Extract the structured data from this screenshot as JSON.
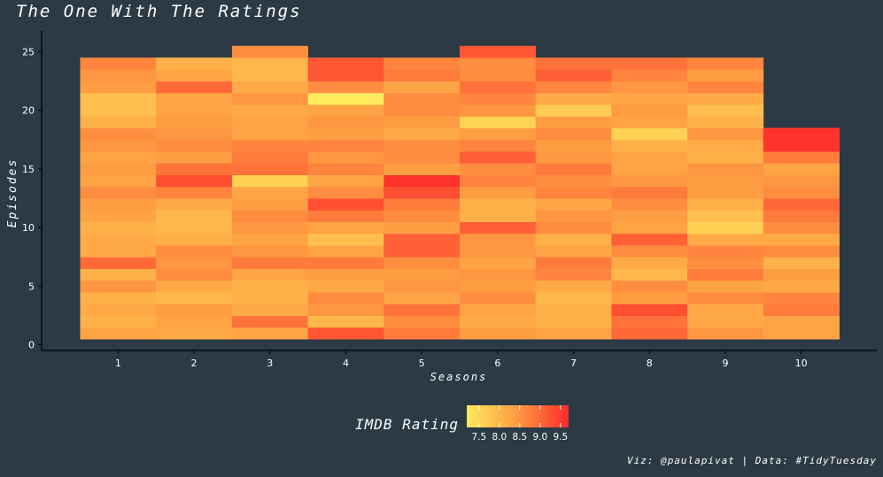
{
  "title": "The One With The Ratings",
  "caption": "Viz: @paulapivat | Data: #TidyTuesday",
  "chart_data": {
    "type": "heatmap",
    "title": "The One With The Ratings",
    "xlabel": "Seasons",
    "ylabel": "Episodes",
    "x_ticks": [
      "1",
      "2",
      "3",
      "4",
      "5",
      "6",
      "7",
      "8",
      "9",
      "10"
    ],
    "y_ticks": [
      0,
      5,
      10,
      15,
      20,
      25
    ],
    "xlim": [
      0.5,
      10.5
    ],
    "ylim": [
      0,
      26.5
    ],
    "legend": {
      "title": "IMDB Rating",
      "position": "bottom",
      "ticks": [
        7.5,
        8.0,
        8.5,
        9.0,
        9.5
      ],
      "range": [
        7.2,
        9.7
      ],
      "colors": [
        "#ffeb5c",
        "#ff2a2a"
      ]
    },
    "grid": false,
    "episode_counts": [
      24,
      24,
      25,
      24,
      24,
      25,
      24,
      24,
      24,
      18
    ],
    "ratings": [
      [
        8.3,
        8.1,
        8.2,
        8.1,
        8.5,
        8.1,
        9.0,
        8.2,
        8.2,
        8.1,
        8.3,
        8.4,
        8.6,
        8.3,
        8.4,
        8.3,
        8.5,
        8.6,
        8.1,
        7.9,
        7.9,
        8.4,
        8.5,
        8.7
      ],
      [
        8.2,
        8.3,
        8.4,
        8.0,
        8.2,
        8.6,
        8.5,
        8.6,
        8.1,
        8.0,
        8.0,
        8.2,
        8.7,
        9.3,
        8.9,
        8.4,
        8.6,
        8.5,
        8.4,
        8.3,
        8.3,
        9.0,
        8.3,
        8.1
      ],
      [
        8.3,
        8.9,
        8.2,
        8.1,
        8.1,
        8.3,
        8.8,
        8.5,
        8.3,
        8.5,
        8.6,
        8.4,
        8.3,
        7.6,
        8.9,
        8.8,
        8.7,
        8.3,
        8.3,
        8.2,
        8.5,
        8.2,
        8.0,
        8.0,
        8.6
      ],
      [
        9.2,
        8.0,
        8.5,
        8.6,
        8.2,
        8.4,
        8.8,
        8.3,
        7.9,
        8.3,
        8.8,
        9.3,
        8.6,
        8.3,
        8.7,
        8.5,
        8.7,
        8.4,
        8.5,
        8.3,
        7.2,
        8.6,
        9.2,
        9.2
      ],
      [
        8.8,
        8.6,
        8.9,
        8.3,
        8.5,
        8.4,
        8.6,
        9.1,
        9.1,
        8.4,
        8.6,
        8.8,
        9.3,
        9.6,
        8.4,
        8.6,
        8.6,
        8.2,
        8.4,
        8.6,
        8.6,
        8.3,
        8.8,
        8.7
      ],
      [
        8.4,
        8.2,
        8.3,
        8.6,
        8.4,
        8.5,
        8.3,
        8.5,
        8.5,
        9.1,
        8.1,
        8.1,
        8.4,
        8.7,
        8.6,
        9.1,
        8.7,
        8.4,
        7.6,
        8.5,
        8.7,
        8.9,
        8.6,
        8.6,
        9.2
      ],
      [
        8.3,
        8.1,
        8.1,
        8.0,
        8.2,
        8.7,
        8.8,
        8.3,
        8.1,
        8.6,
        8.5,
        8.3,
        8.7,
        8.6,
        8.8,
        8.5,
        8.4,
        8.6,
        8.4,
        7.7,
        8.2,
        8.7,
        9.1,
        8.9
      ],
      [
        9.0,
        8.9,
        9.3,
        8.4,
        8.6,
        8.0,
        8.2,
        8.6,
        9.1,
        8.3,
        8.4,
        8.6,
        8.8,
        8.5,
        8.3,
        8.3,
        8.1,
        7.6,
        8.3,
        8.4,
        8.3,
        8.5,
        8.7,
        8.9
      ],
      [
        8.5,
        8.2,
        8.2,
        8.6,
        8.3,
        8.8,
        8.6,
        8.7,
        8.2,
        7.6,
        7.9,
        8.1,
        8.4,
        8.4,
        8.5,
        8.1,
        8.2,
        8.5,
        8.1,
        7.9,
        8.2,
        8.7,
        8.4,
        8.7
      ],
      [
        8.3,
        8.3,
        8.8,
        8.7,
        8.2,
        8.4,
        8.1,
        8.6,
        8.2,
        8.6,
        8.8,
        9.0,
        8.6,
        8.5,
        8.3,
        8.8,
        9.6,
        9.6
      ]
    ]
  }
}
